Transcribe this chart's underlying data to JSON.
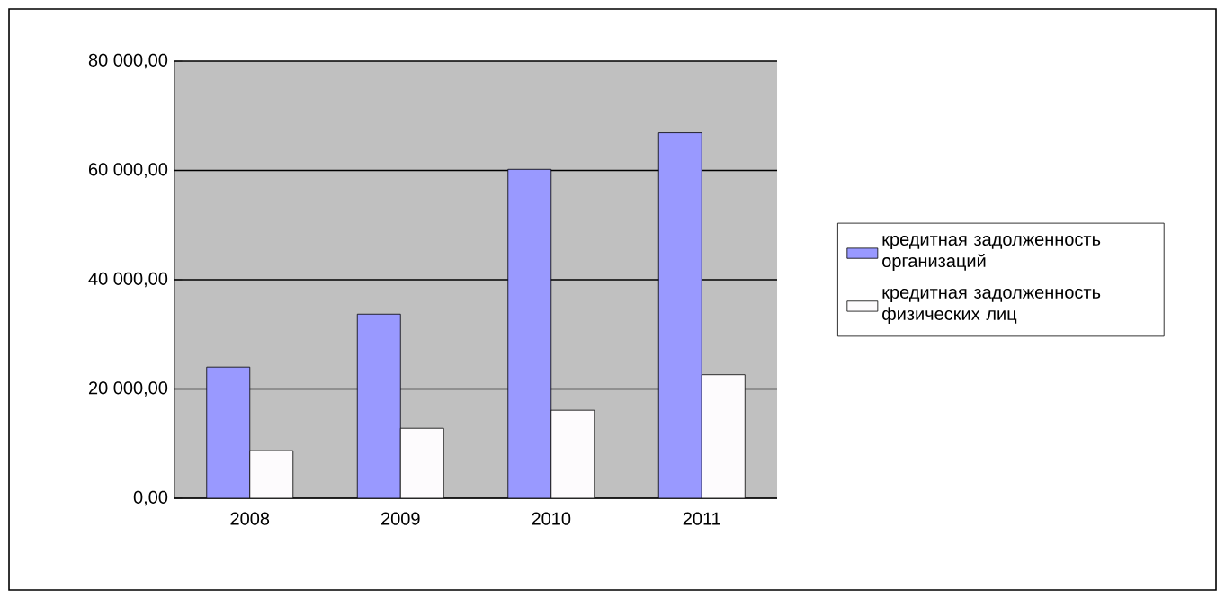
{
  "chart_data": {
    "type": "bar",
    "categories": [
      "2008",
      "2009",
      "2010",
      "2011"
    ],
    "series": [
      {
        "name": "кредитная задолженность организаций",
        "color": "#9999ff",
        "values": [
          24000,
          33700,
          60200,
          66900
        ]
      },
      {
        "name": "кредитная задолженность физических лиц",
        "color": "#fdfbfd",
        "values": [
          8700,
          12800,
          16100,
          22600
        ]
      }
    ],
    "ylim": [
      0,
      80000
    ],
    "yticks": [
      {
        "value": 0,
        "label": "0,00"
      },
      {
        "value": 20000,
        "label": "20 000,00"
      },
      {
        "value": 40000,
        "label": "40 000,00"
      },
      {
        "value": 60000,
        "label": "60 000,00"
      },
      {
        "value": 80000,
        "label": "80 000,00"
      }
    ],
    "grid": "y",
    "legend": "right"
  }
}
